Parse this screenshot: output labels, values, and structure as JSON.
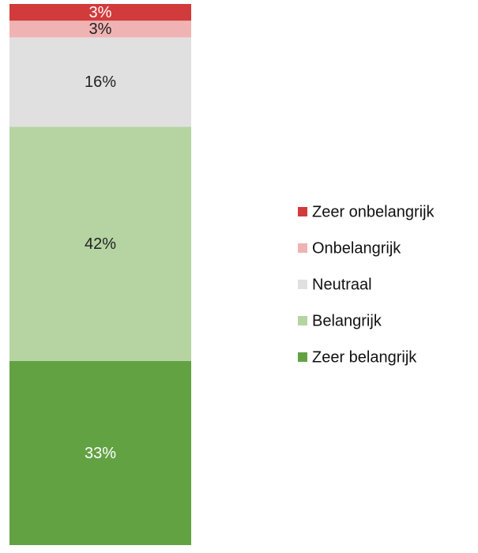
{
  "chart_data": {
    "type": "bar",
    "stacked": true,
    "categories": [
      null
    ],
    "series": [
      {
        "name": "Zeer onbelangrijk",
        "color": "#d13b3b",
        "values": [
          3
        ],
        "value_labels": [
          "3%"
        ]
      },
      {
        "name": "Onbelangrijk",
        "color": "#f0b3b3",
        "values": [
          3
        ],
        "value_labels": [
          "3%"
        ]
      },
      {
        "name": "Neutraal",
        "color": "#e0e0e0",
        "values": [
          16
        ],
        "value_labels": [
          "16%"
        ]
      },
      {
        "name": "Belangrijk",
        "color": "#b5d4a2",
        "values": [
          42
        ],
        "value_labels": [
          "42%"
        ]
      },
      {
        "name": "Zeer belangrijk",
        "color": "#63a243",
        "values": [
          33
        ],
        "value_labels": [
          "33%"
        ]
      }
    ],
    "legend": "right"
  }
}
